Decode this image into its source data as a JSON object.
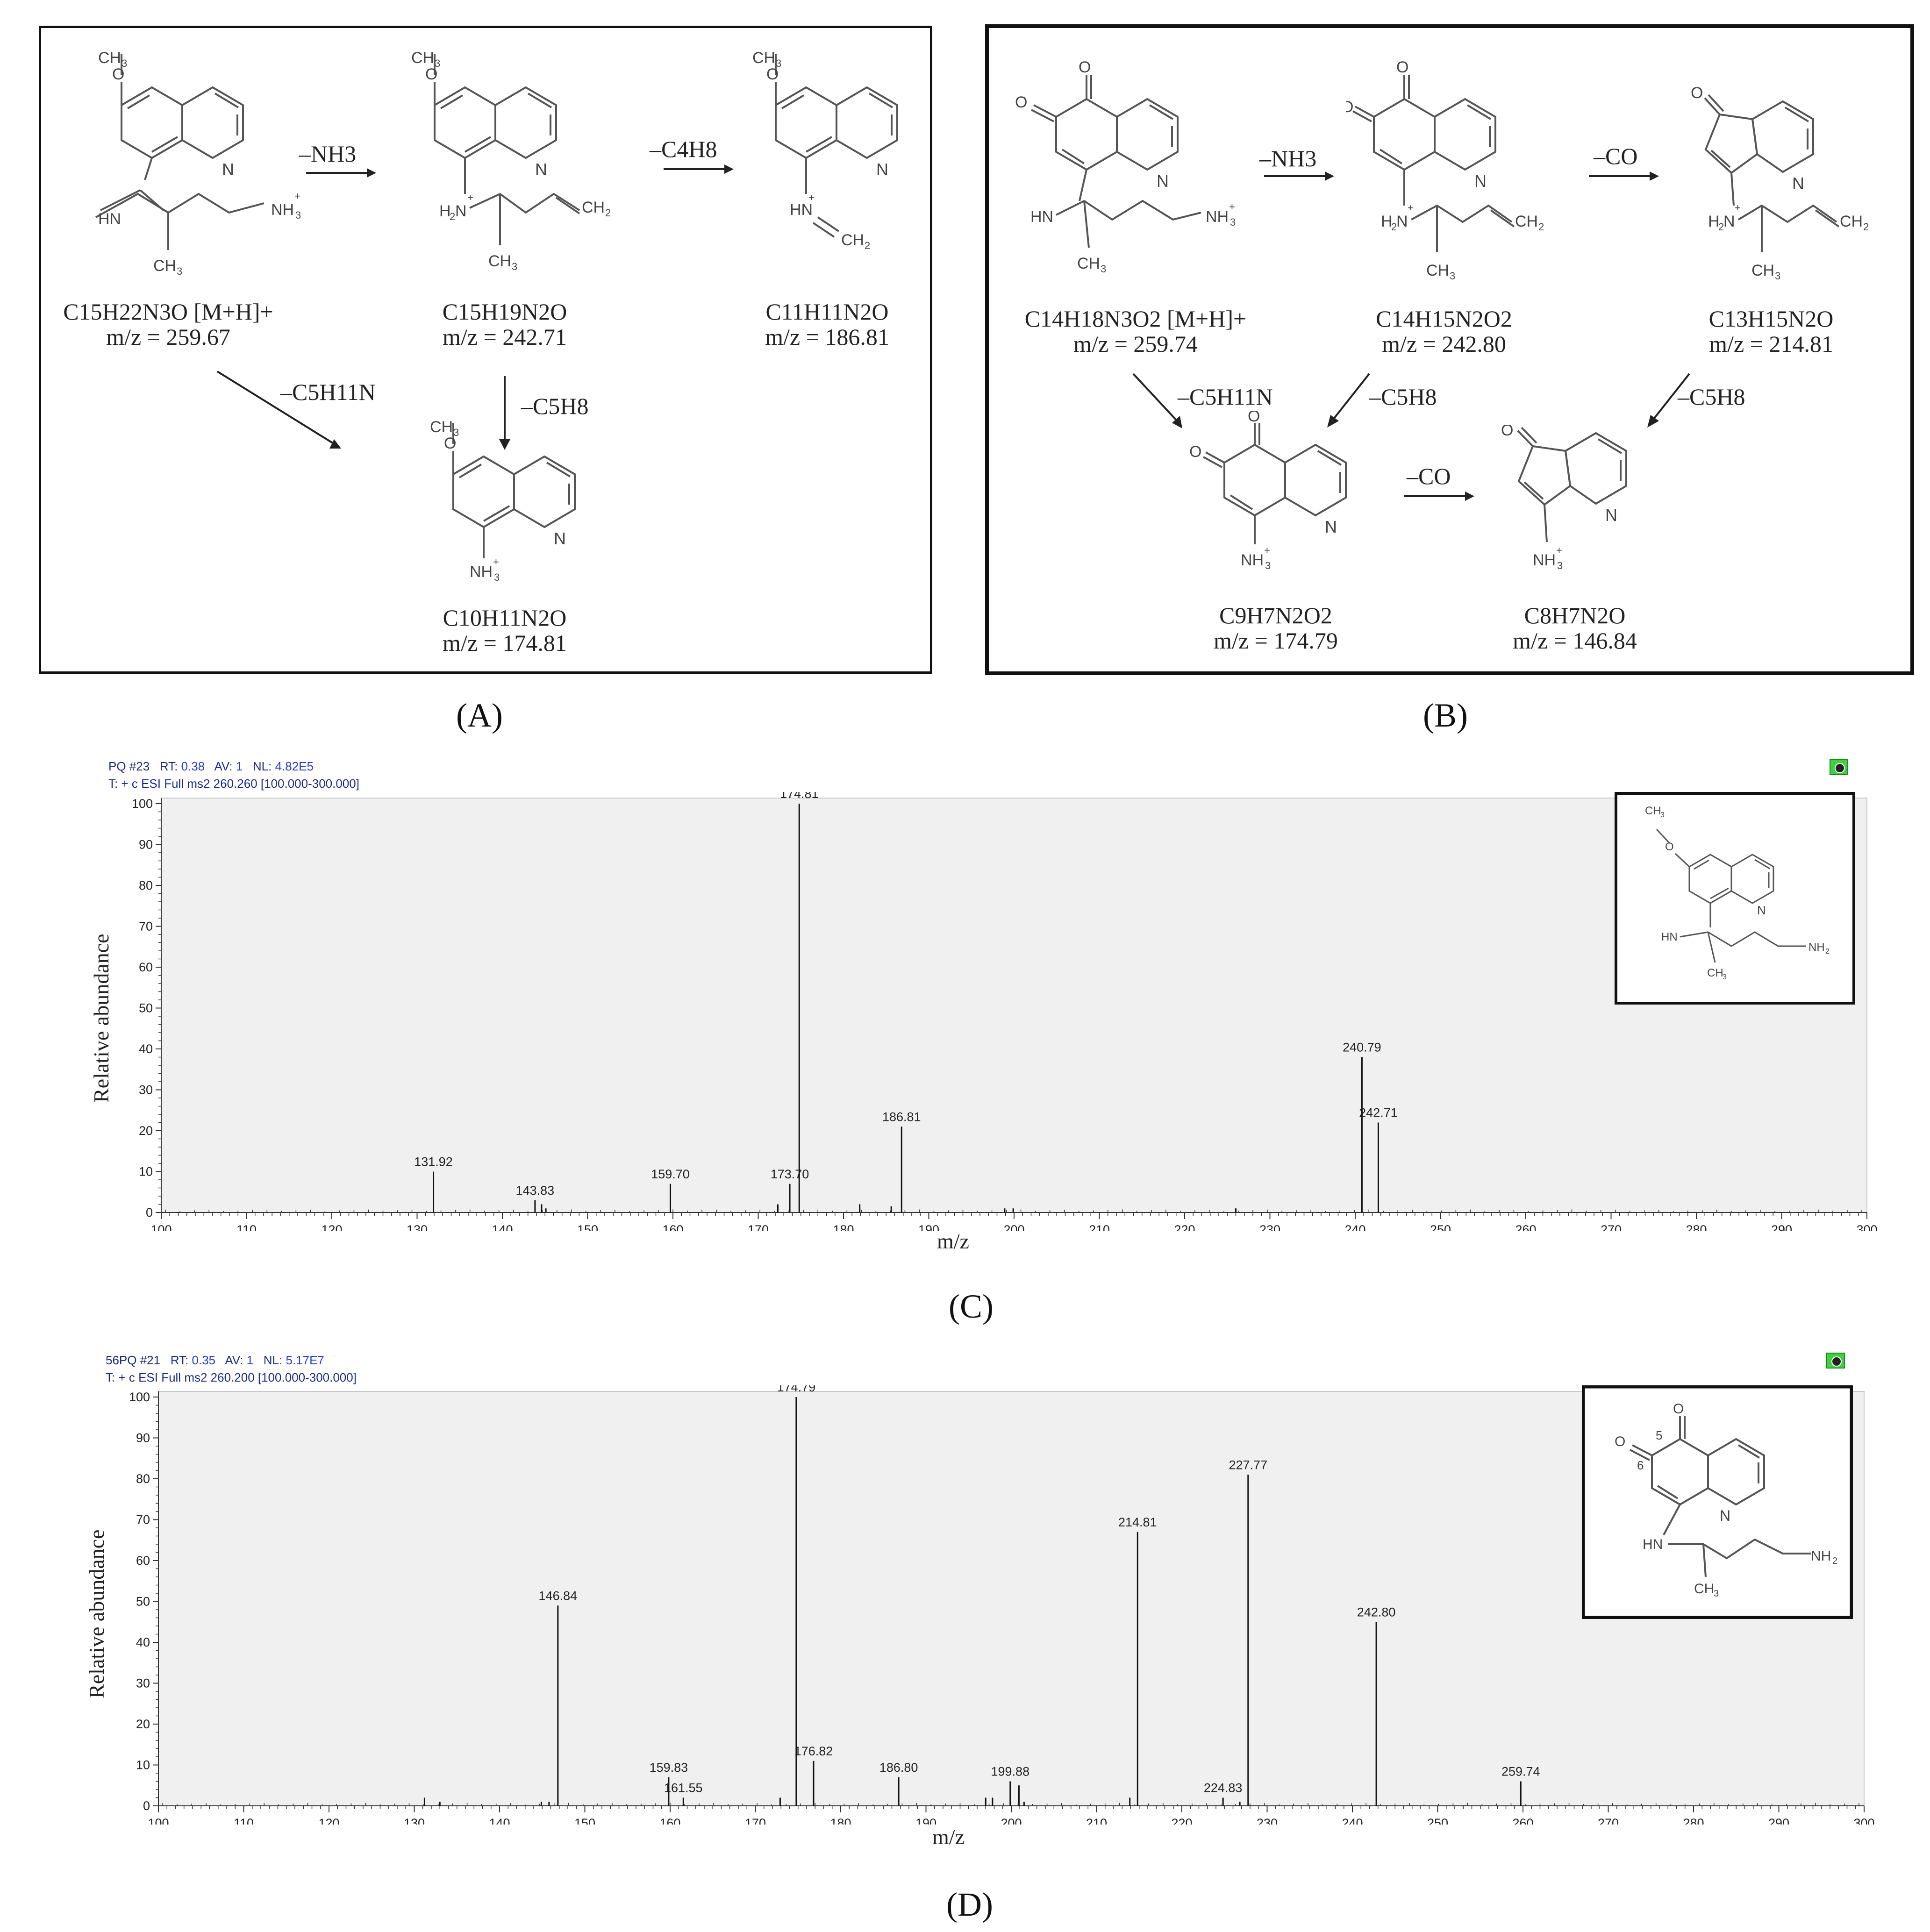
{
  "panels": {
    "A": {
      "label": "(A)",
      "structures": [
        {
          "formula": "C15H22N3O [M+H]+",
          "mz": "m/z = 259.67"
        },
        {
          "formula": "C15H19N2O",
          "mz": "m/z = 242.71"
        },
        {
          "formula": "C11H11N2O",
          "mz": "m/z = 186.81"
        },
        {
          "formula": "C10H11N2O",
          "mz": "m/z = 174.81"
        }
      ],
      "arrows": [
        "–NH3",
        "–C4H8",
        "–C5H11N",
        "–C5H8"
      ]
    },
    "B": {
      "label": "(B)",
      "structures": [
        {
          "formula": "C14H18N3O2 [M+H]+",
          "mz": "m/z = 259.74"
        },
        {
          "formula": "C14H15N2O2",
          "mz": "m/z = 242.80"
        },
        {
          "formula": "C13H15N2O",
          "mz": "m/z = 214.81"
        },
        {
          "formula": "C9H7N2O2",
          "mz": "m/z = 174.79"
        },
        {
          "formula": "C8H7N2O",
          "mz": "m/z = 146.84"
        }
      ],
      "arrows": [
        "–NH3",
        "–CO",
        "–C5H11N",
        "–C5H8",
        "–C5H8",
        "–CO"
      ]
    },
    "C": {
      "label": "(C)"
    },
    "D": {
      "label": "(D)"
    }
  },
  "chart_data": [
    {
      "type": "bar",
      "header": {
        "scan": "PQ #23",
        "rt_label": "RT:",
        "rt": "0.38",
        "av_label": "AV:",
        "av": "1",
        "nl_label": "NL:",
        "nl": "4.82E5",
        "filter": "T: + c ESI Full ms2 260.260 [100.000-300.000]"
      },
      "xlabel": "m/z",
      "ylabel": "Relative abundance",
      "xlim": [
        100,
        300
      ],
      "ylim": [
        0,
        100
      ],
      "xticks": [
        100,
        110,
        120,
        130,
        140,
        150,
        160,
        170,
        180,
        190,
        200,
        210,
        220,
        230,
        240,
        250,
        260,
        270,
        280,
        290,
        300
      ],
      "yticks": [
        0,
        10,
        20,
        30,
        40,
        50,
        60,
        70,
        80,
        90,
        100
      ],
      "peaks": [
        {
          "x": 131.92,
          "y": 10,
          "label": "131.92"
        },
        {
          "x": 143.83,
          "y": 3,
          "label": "143.83"
        },
        {
          "x": 144.6,
          "y": 2,
          "label": ""
        },
        {
          "x": 145.1,
          "y": 1,
          "label": ""
        },
        {
          "x": 159.7,
          "y": 7,
          "label": "159.70"
        },
        {
          "x": 172.3,
          "y": 2,
          "label": ""
        },
        {
          "x": 173.7,
          "y": 7,
          "label": "173.70"
        },
        {
          "x": 174.81,
          "y": 100,
          "label": "174.81"
        },
        {
          "x": 181.9,
          "y": 2,
          "label": ""
        },
        {
          "x": 185.6,
          "y": 1.5,
          "label": ""
        },
        {
          "x": 186.81,
          "y": 21,
          "label": "186.81"
        },
        {
          "x": 198.9,
          "y": 1,
          "label": ""
        },
        {
          "x": 199.9,
          "y": 1,
          "label": ""
        },
        {
          "x": 226.0,
          "y": 1,
          "label": ""
        },
        {
          "x": 240.79,
          "y": 38,
          "label": "240.79"
        },
        {
          "x": 242.71,
          "y": 22,
          "label": "242.71"
        }
      ]
    },
    {
      "type": "bar",
      "header": {
        "scan": "56PQ #21",
        "rt_label": "RT:",
        "rt": "0.35",
        "av_label": "AV:",
        "av": "1",
        "nl_label": "NL:",
        "nl": "5.17E7",
        "filter": "T: + c ESI Full ms2 260.200 [100.000-300.000]"
      },
      "xlabel": "m/z",
      "ylabel": "Relative abundance",
      "xlim": [
        100,
        300
      ],
      "ylim": [
        0,
        100
      ],
      "xticks": [
        100,
        110,
        120,
        130,
        140,
        150,
        160,
        170,
        180,
        190,
        200,
        210,
        220,
        230,
        240,
        250,
        260,
        270,
        280,
        290,
        300
      ],
      "yticks": [
        0,
        10,
        20,
        30,
        40,
        50,
        60,
        70,
        80,
        90,
        100
      ],
      "peaks": [
        {
          "x": 131.2,
          "y": 2,
          "label": ""
        },
        {
          "x": 133.0,
          "y": 1,
          "label": ""
        },
        {
          "x": 144.9,
          "y": 1,
          "label": ""
        },
        {
          "x": 145.8,
          "y": 1,
          "label": ""
        },
        {
          "x": 146.84,
          "y": 49,
          "label": "146.84"
        },
        {
          "x": 159.83,
          "y": 7,
          "label": "159.83"
        },
        {
          "x": 161.55,
          "y": 2,
          "label": "161.55"
        },
        {
          "x": 172.9,
          "y": 2,
          "label": ""
        },
        {
          "x": 174.79,
          "y": 100,
          "label": "174.79"
        },
        {
          "x": 176.82,
          "y": 11,
          "label": "176.82"
        },
        {
          "x": 186.8,
          "y": 7,
          "label": "186.80"
        },
        {
          "x": 197.0,
          "y": 2,
          "label": ""
        },
        {
          "x": 197.8,
          "y": 2,
          "label": ""
        },
        {
          "x": 199.88,
          "y": 6,
          "label": "199.88"
        },
        {
          "x": 200.9,
          "y": 5,
          "label": ""
        },
        {
          "x": 201.5,
          "y": 1,
          "label": ""
        },
        {
          "x": 213.9,
          "y": 2,
          "label": ""
        },
        {
          "x": 214.81,
          "y": 67,
          "label": "214.81"
        },
        {
          "x": 224.83,
          "y": 2,
          "label": "224.83"
        },
        {
          "x": 226.8,
          "y": 1,
          "label": ""
        },
        {
          "x": 227.77,
          "y": 81,
          "label": "227.77"
        },
        {
          "x": 242.8,
          "y": 45,
          "label": "242.80"
        },
        {
          "x": 259.74,
          "y": 6,
          "label": "259.74"
        }
      ]
    }
  ]
}
